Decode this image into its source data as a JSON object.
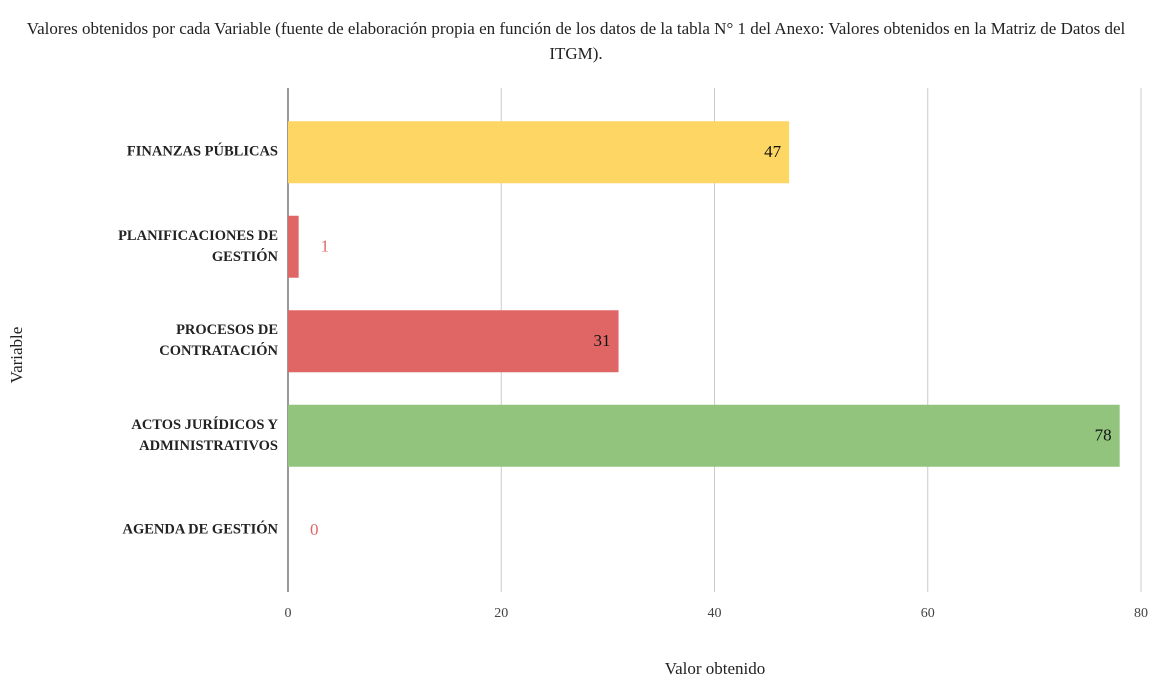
{
  "chart_data": {
    "type": "bar",
    "orientation": "horizontal",
    "title": "Valores obtenidos por cada Variable (fuente de elaboración propia en función de los datos de la tabla N° 1 del Anexo: Valores obtenidos en la Matriz de Datos del ITGM).",
    "x_label": "Valor obtenido",
    "y_label": "Variable",
    "categories": [
      "FINANZAS PÚBLICAS",
      "PLANIFICACIONES DE GESTIÓN",
      "PROCESOS DE CONTRATACIÓN",
      "ACTOS JURÍDICOS Y ADMINISTRATIVOS",
      "AGENDA DE GESTIÓN"
    ],
    "values": [
      47,
      1,
      31,
      78,
      0
    ],
    "colors": [
      "#fdd663",
      "#e06666",
      "#e06666",
      "#93c47d",
      "#e06666"
    ],
    "xlim": [
      0,
      80
    ],
    "xticks": [
      0,
      20,
      40,
      60,
      80
    ],
    "grid": true
  }
}
